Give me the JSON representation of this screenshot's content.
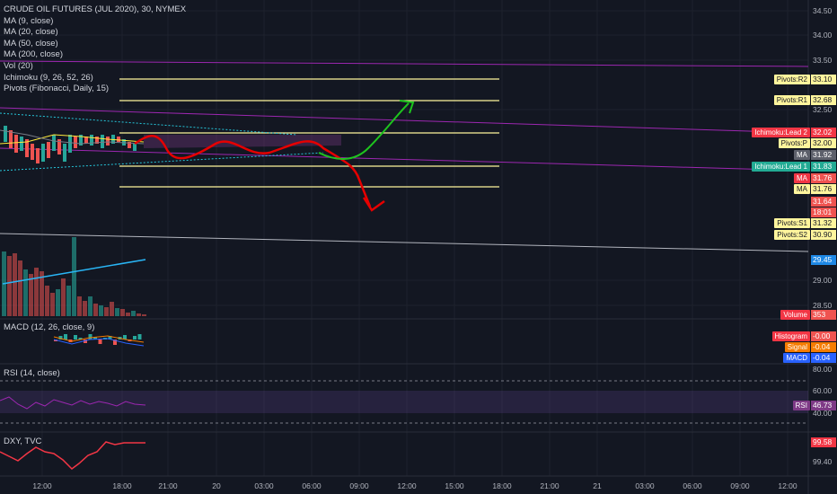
{
  "legend": {
    "symbol": "CRUDE OIL FUTURES (JUL 2020), 30, NYMEX",
    "indicators": [
      "MA (9, close)",
      "MA (20, close)",
      "MA (50, close)",
      "MA (200, close)",
      "Vol (20)",
      "Ichimoku (9, 26, 52, 26)",
      "Pivots (Fibonacci, Daily, 15)"
    ]
  },
  "panes": {
    "macd": "MACD (12, 26, close, 9)",
    "rsi": "RSI (14, close)",
    "dxy": "DXY, TVC"
  },
  "price_axis": [
    "34.50",
    "34.00",
    "33.50",
    "32.50",
    "31.64",
    "18:01",
    "29.00",
    "28.50",
    "80.00",
    "60.00",
    "40.00",
    "99.40"
  ],
  "labels": {
    "r2": {
      "name": "Pivots:R2",
      "value": "33.10"
    },
    "r1": {
      "name": "Pivots:R1",
      "value": "32.68"
    },
    "lead2": {
      "name": "Ichimoku:Lead 2",
      "value": "32.02"
    },
    "pp": {
      "name": "Pivots:P",
      "value": "32.00"
    },
    "ma1": {
      "name": "MA",
      "value": "31.92"
    },
    "lead1": {
      "name": "Ichimoku:Lead 1",
      "value": "31.83"
    },
    "ma2": {
      "name": "MA",
      "value": "31.76"
    },
    "ma3": {
      "name": "MA",
      "value": "31.76"
    },
    "s1": {
      "name": "Pivots:S1",
      "value": "31.32"
    },
    "s2": {
      "name": "Pivots:S2",
      "value": "30.90"
    },
    "volma": {
      "name": "",
      "value": "29.45"
    },
    "volume": {
      "name": "Volume",
      "value": "353"
    },
    "hist": {
      "name": "Histogram",
      "value": "-0.00"
    },
    "signal": {
      "name": "Signal",
      "value": "-0.04"
    },
    "macd": {
      "name": "MACD",
      "value": "-0.04"
    },
    "rsi": {
      "name": "RSI",
      "value": "46.73"
    },
    "dxy": {
      "name": "",
      "value": "99.58"
    }
  },
  "time_axis": [
    "12:00",
    "18:00",
    "21:00",
    "20",
    "03:00",
    "06:00",
    "09:00",
    "12:00",
    "15:00",
    "18:00",
    "21:00",
    "21",
    "03:00",
    "06:00",
    "09:00",
    "12:00"
  ],
  "colors": {
    "bg": "#131722",
    "up": "#26a69a",
    "down": "#ef5350",
    "pivot": "#fff59d",
    "arrow_up": "#1ec41e",
    "arrow_down": "#e60000"
  }
}
